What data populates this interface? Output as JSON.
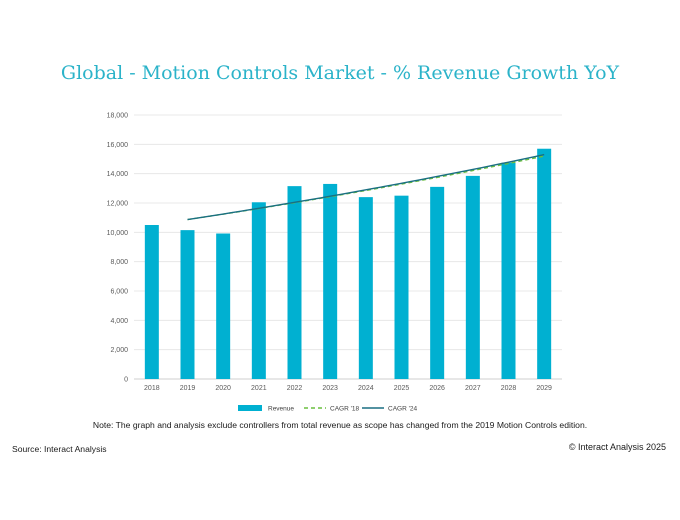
{
  "chart_data": {
    "type": "bar",
    "title": "Global - Motion Controls Market - % Revenue Growth YoY",
    "categories": [
      "2018",
      "2019",
      "2020",
      "2021",
      "2022",
      "2023",
      "2024",
      "2025",
      "2026",
      "2027",
      "2028",
      "2029"
    ],
    "series": [
      {
        "name": "Revenue",
        "kind": "bar",
        "color": "#00b0d1",
        "values": [
          10500,
          10150,
          9920,
          12050,
          13150,
          13300,
          12400,
          12500,
          13100,
          13850,
          14750,
          15700
        ]
      },
      {
        "name": "CAGR '18",
        "kind": "dashed-line",
        "color": "#6abf3f",
        "values": [
          null,
          10870,
          null,
          null,
          null,
          null,
          null,
          null,
          null,
          null,
          null,
          15200
        ]
      },
      {
        "name": "CAGR '24",
        "kind": "line",
        "color": "#1a6f82",
        "values": [
          null,
          10870,
          null,
          null,
          null,
          null,
          null,
          null,
          null,
          null,
          null,
          15300
        ]
      }
    ],
    "yticks": [
      0,
      2000,
      4000,
      6000,
      8000,
      10000,
      12000,
      14000,
      16000,
      18000
    ],
    "ylim": [
      0,
      18000
    ],
    "grid": true,
    "legend_position": "bottom"
  },
  "footer": {
    "note": "Note: The graph and analysis exclude controllers from total revenue as scope has changed from the 2019 Motion Controls edition.",
    "source": "Source: Interact Analysis",
    "copyright": "© Interact Analysis 2025"
  }
}
